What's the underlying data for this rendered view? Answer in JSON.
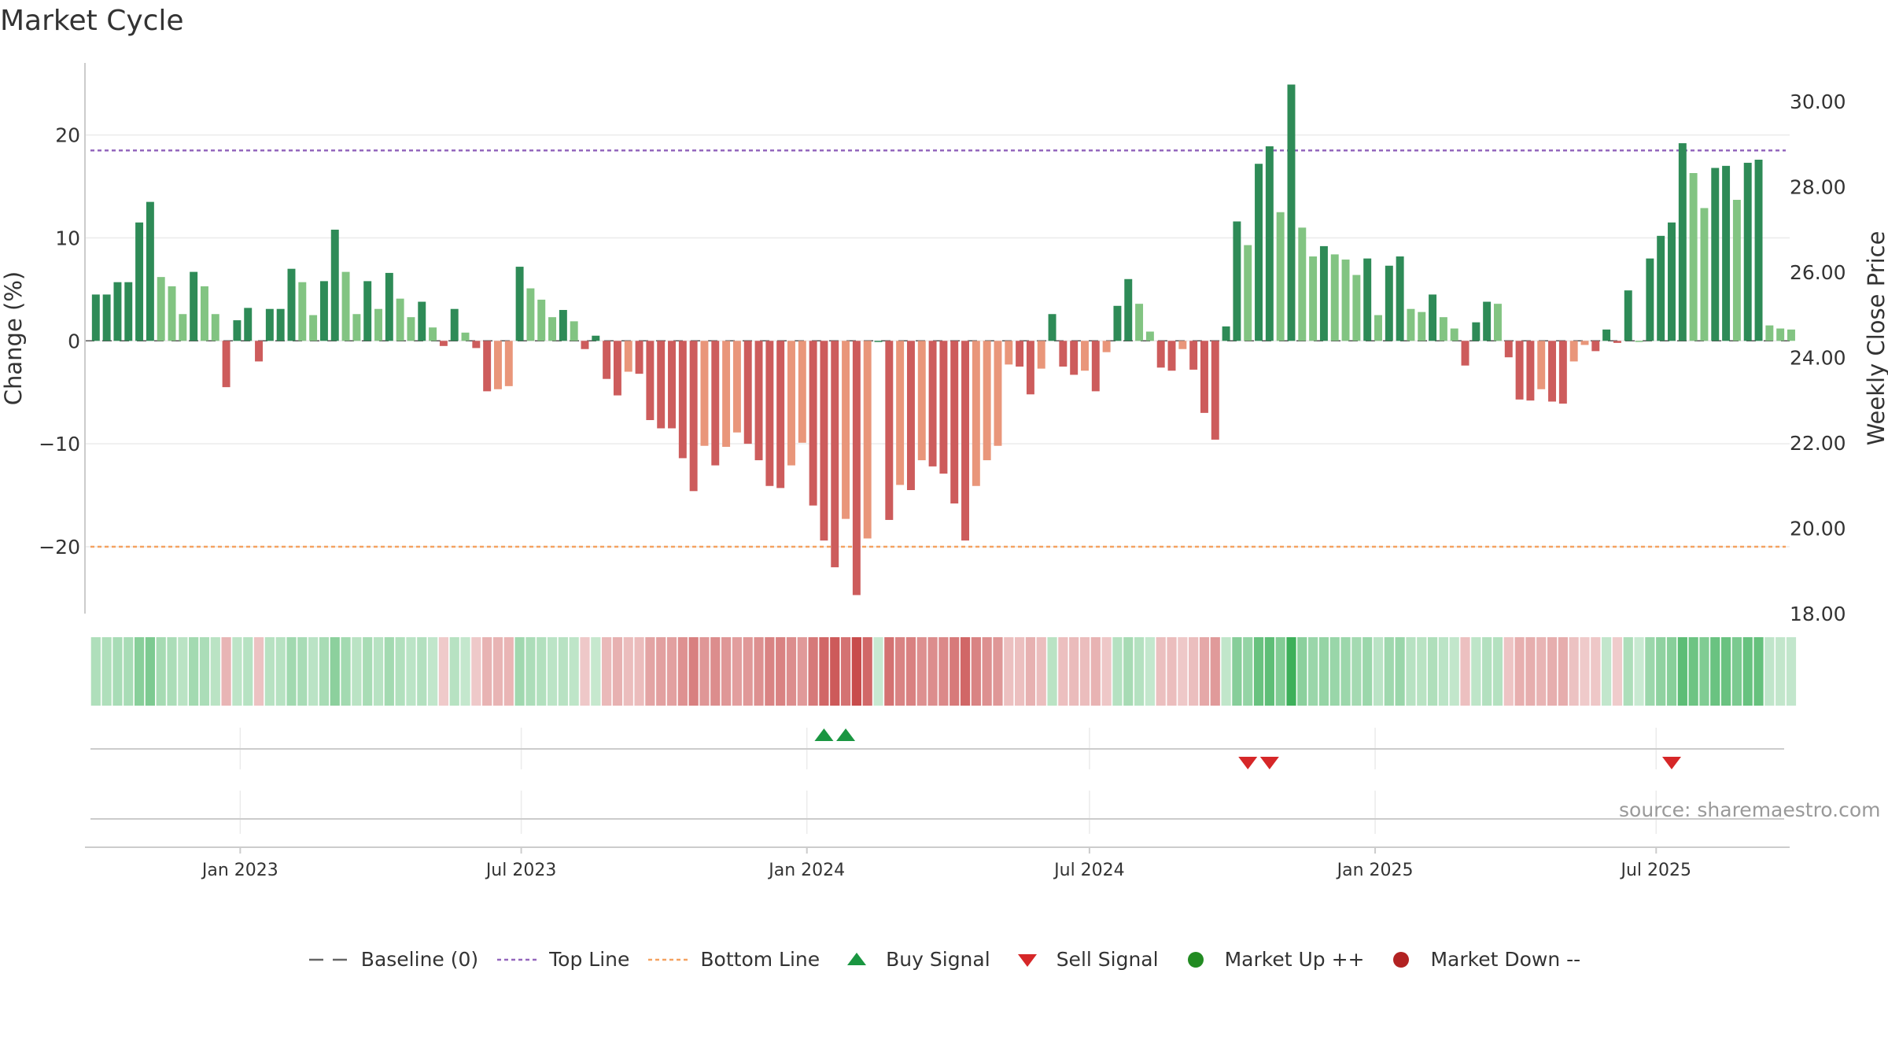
{
  "chart_data": {
    "type": "bar",
    "title": "Market Cycle",
    "ylabel_left": "Change (%)",
    "ylabel_right": "Weekly Close Price",
    "y_left_ticks": [
      "20",
      "10",
      "0",
      "−10",
      "−20"
    ],
    "y_left_tick_values": [
      20,
      10,
      0,
      -10,
      -20
    ],
    "y_left_range": [
      -26.5,
      27
    ],
    "y_right_ticks": [
      "30.00",
      "28.00",
      "26.00",
      "24.00",
      "22.00",
      "20.00",
      "18.00"
    ],
    "y_right_tick_values": [
      30,
      28,
      26,
      24,
      22,
      20,
      18
    ],
    "y_right_range": [
      18,
      30.9
    ],
    "x_ticks": [
      "Jan 2023",
      "Jul 2023",
      "Jan 2024",
      "Jul 2024",
      "Jan 2025",
      "Jul 2025"
    ],
    "x_tick_dates": [
      "2023-01-01",
      "2023-07-01",
      "2024-01-01",
      "2024-07-01",
      "2025-01-01",
      "2025-07-01"
    ],
    "x_range": [
      "2022-09-23",
      "2025-09-25"
    ],
    "first_week": "2022-09-30",
    "top_line": 18.5,
    "bottom_line": -20,
    "values": [
      4.5,
      4.5,
      5.7,
      5.7,
      11.5,
      13.5,
      6.2,
      5.3,
      2.6,
      6.7,
      5.3,
      2.6,
      -4.5,
      2.0,
      3.2,
      -2.0,
      3.1,
      3.1,
      7.0,
      5.7,
      2.5,
      5.8,
      10.8,
      6.7,
      2.6,
      5.8,
      3.1,
      6.6,
      4.1,
      2.3,
      3.8,
      1.3,
      -0.5,
      3.1,
      0.8,
      -0.7,
      -4.9,
      -4.7,
      -4.4,
      7.2,
      5.1,
      4.0,
      2.3,
      3.0,
      1.9,
      -0.8,
      0.5,
      -3.7,
      -5.3,
      -3.0,
      -3.2,
      -7.7,
      -8.5,
      -8.5,
      -11.4,
      -14.6,
      -10.2,
      -12.1,
      -10.3,
      -8.9,
      -10.0,
      -11.6,
      -14.1,
      -14.3,
      -12.1,
      -9.9,
      -16.0,
      -19.4,
      -22.0,
      -17.3,
      -24.7,
      -19.2,
      0,
      -17.4,
      -14.0,
      -14.5,
      -11.6,
      -12.2,
      -12.9,
      -15.8,
      -19.4,
      -14.1,
      -11.6,
      -10.2,
      -2.3,
      -2.5,
      -5.2,
      -2.7,
      2.6,
      -2.5,
      -3.3,
      -2.9,
      -4.9,
      -1.1,
      3.4,
      6.0,
      3.6,
      0.9,
      -2.6,
      -2.9,
      -0.8,
      -2.8,
      -7.0,
      -9.6,
      1.4,
      11.6,
      9.3,
      17.2,
      18.9,
      12.5,
      24.9,
      11.0,
      8.2,
      9.2,
      8.4,
      7.9,
      6.4,
      8.0,
      2.5,
      7.3,
      8.2,
      3.1,
      2.8,
      4.5,
      2.3,
      1.2,
      -2.4,
      1.8,
      3.8,
      3.6,
      -1.6,
      -5.7,
      -5.8,
      -4.7,
      -5.9,
      -6.1,
      -2.0,
      -0.4,
      -1.0,
      1.1,
      -0.2,
      4.9,
      0,
      8.0,
      10.2,
      11.5,
      19.2,
      16.3,
      12.9,
      16.8,
      17.0,
      13.7,
      17.3,
      17.6,
      1.5,
      1.2,
      1.1
    ],
    "buy_signal_weeks": [
      "2024-01-12",
      "2024-01-26"
    ],
    "sell_signal_weeks": [
      "2024-10-11",
      "2024-10-25",
      "2025-07-11"
    ],
    "series": [
      {
        "name": "Baseline (0)",
        "color": "#666666",
        "style": "dashed"
      },
      {
        "name": "Top Line",
        "color": "#9467bd",
        "style": "dotted"
      },
      {
        "name": "Bottom Line",
        "color": "#f4a261",
        "style": "dotted"
      },
      {
        "name": "Buy Signal",
        "color": "#1a9641",
        "marker": "triangle-up"
      },
      {
        "name": "Sell Signal",
        "color": "#d62728",
        "marker": "triangle-down"
      },
      {
        "name": "Market Up ++",
        "color": "#228b22",
        "marker": "circle"
      },
      {
        "name": "Market Down --",
        "color": "#b22222",
        "marker": "circle"
      }
    ],
    "grid": true,
    "legend_position": "bottom"
  },
  "source": "source: sharemaestro.com",
  "colors": {
    "strong_up": "#2e8b57",
    "weak_up": "#82c482",
    "strong_down": "#cd5c5c",
    "weak_down": "#e9967a",
    "grid": "#ebebeb",
    "axis": "#cccccc"
  }
}
